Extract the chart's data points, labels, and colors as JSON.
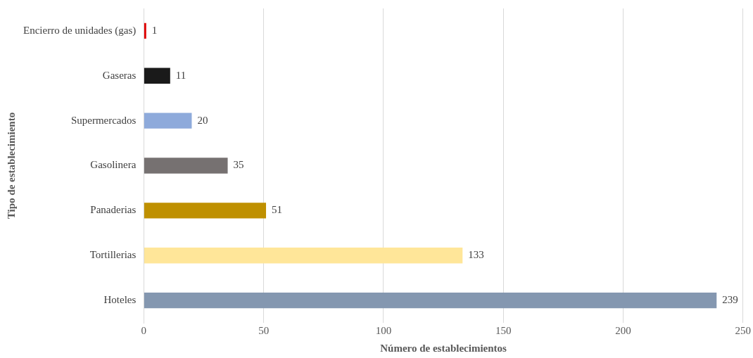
{
  "chart_data": {
    "type": "bar",
    "orientation": "horizontal",
    "xlabel": "Número de establecimientos",
    "ylabel": "Tipo de establecimiento",
    "categories": [
      "Encierro de unidades (gas)",
      "Gaseras",
      "Supermercados",
      "Gasolinera",
      "Panaderias",
      "Tortillerias",
      "Hoteles"
    ],
    "values": [
      1,
      11,
      20,
      35,
      51,
      133,
      239
    ],
    "colors": [
      "#e00000",
      "#1a1a1a",
      "#8eaadb",
      "#767171",
      "#bf9000",
      "#ffe699",
      "#8497b0"
    ],
    "xlim": [
      0,
      250
    ],
    "xticks": [
      0,
      50,
      100,
      150,
      200,
      250
    ],
    "grid": "x",
    "data_labels": true,
    "legend": false
  }
}
